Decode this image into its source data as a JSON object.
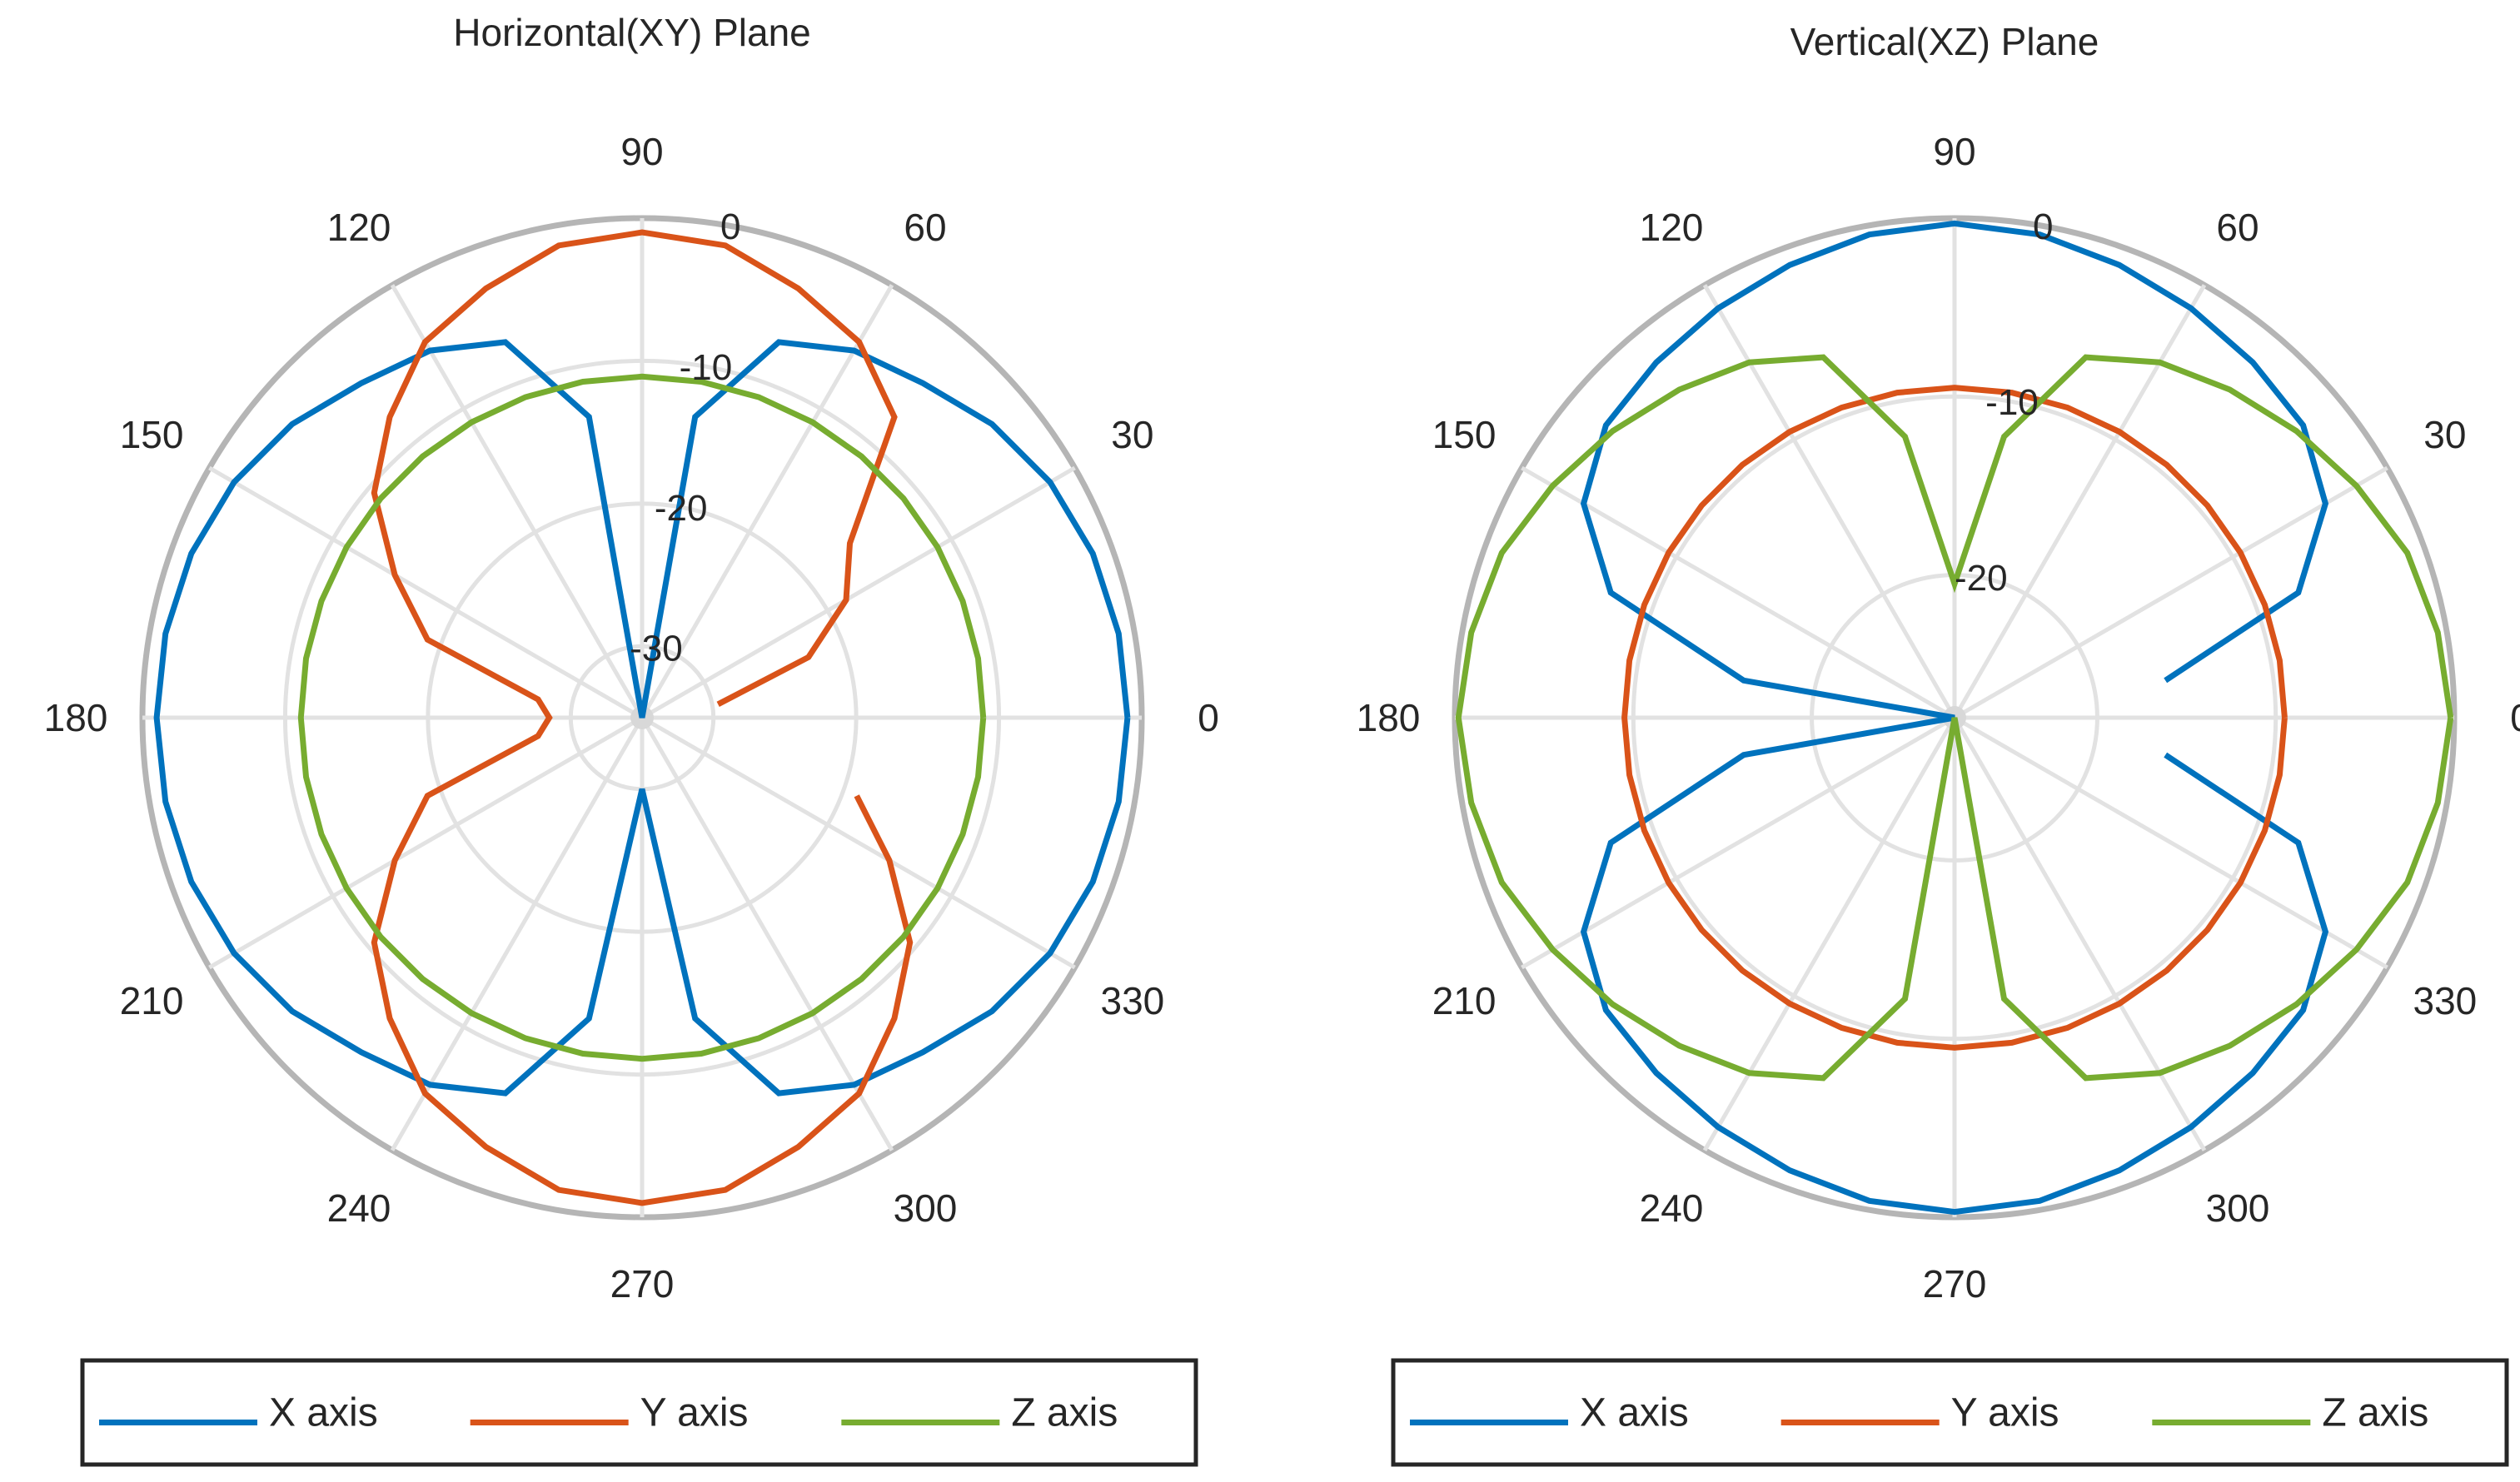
{
  "chart_data": [
    {
      "type": "polar-line",
      "title": "Horizontal(XY) Plane",
      "theta_unit": "degrees",
      "theta_ticks": [
        0,
        30,
        60,
        90,
        120,
        150,
        180,
        210,
        240,
        270,
        300,
        330
      ],
      "theta_tick_labels": [
        "0",
        "30",
        "60",
        "90",
        "120",
        "150",
        "180",
        "210",
        "240",
        "270",
        "300",
        "330"
      ],
      "r_ticks": [
        -30,
        -20,
        -10,
        0
      ],
      "r_tick_labels": [
        "-30",
        "-20",
        "-10",
        "0"
      ],
      "r_lim": [
        -35,
        0
      ],
      "r_label_angle": 80,
      "legend_position": "bottom",
      "theta": [
        0,
        10,
        20,
        30,
        40,
        50,
        60,
        70,
        80,
        90,
        100,
        110,
        120,
        130,
        140,
        150,
        160,
        170,
        180,
        190,
        200,
        210,
        220,
        230,
        240,
        250,
        260,
        270,
        280,
        290,
        300,
        310,
        320,
        330,
        340,
        350,
        360
      ],
      "series": [
        {
          "name": "X axis",
          "color": "#0072BD",
          "r": [
            -1.0,
            -1.1,
            -1.4,
            -2.0,
            -3.0,
            -4.4,
            -5.3,
            -7.0,
            -13.6,
            -35.0,
            -13.6,
            -7.0,
            -5.3,
            -4.4,
            -3.0,
            -2.0,
            -1.4,
            -1.1,
            -1.0,
            -1.1,
            -1.4,
            -2.0,
            -3.0,
            -4.4,
            -5.3,
            -7.0,
            -13.6,
            -30.0,
            -13.6,
            -7.0,
            -5.3,
            -4.4,
            -3.0,
            -2.0,
            -1.4,
            -1.1,
            -1.0
          ]
        },
        {
          "name": "Y axis",
          "color": "#D95319",
          "r": [
            null,
            -29.6,
            -22.6,
            -18.5,
            -16.0,
            -7.5,
            -4.6,
            -3.0,
            -1.4,
            -1.0,
            -1.4,
            -3.0,
            -4.6,
            -7.5,
            -10.5,
            -15.0,
            -19.0,
            -27.6,
            -28.5,
            -27.6,
            -19.0,
            -15.0,
            -10.5,
            -7.5,
            -4.6,
            -3.0,
            -1.4,
            -1.0,
            -1.4,
            -3.0,
            -4.6,
            -7.5,
            -10.5,
            -15.0,
            -19.0,
            null,
            null
          ]
        },
        {
          "name": "Z axis",
          "color": "#77AC30",
          "r": [
            -11.1,
            -11.1,
            -11.1,
            -11.1,
            -11.1,
            -11.1,
            -11.1,
            -11.1,
            -11.1,
            -11.1,
            -11.1,
            -11.1,
            -11.1,
            -11.1,
            -11.1,
            -11.1,
            -11.1,
            -11.1,
            -11.1,
            -11.1,
            -11.1,
            -11.1,
            -11.1,
            -11.1,
            -11.1,
            -11.1,
            -11.1,
            -11.1,
            -11.1,
            -11.1,
            -11.1,
            -11.1,
            -11.1,
            -11.1,
            -11.1,
            -11.1,
            -11.1
          ]
        }
      ]
    },
    {
      "type": "polar-line",
      "title": "Vertical(XZ) Plane",
      "theta_unit": "degrees",
      "theta_ticks": [
        0,
        30,
        60,
        90,
        120,
        150,
        180,
        210,
        240,
        270,
        300,
        330
      ],
      "theta_tick_labels": [
        "0",
        "30",
        "60",
        "90",
        "120",
        "150",
        "180",
        "210",
        "240",
        "270",
        "300",
        "330"
      ],
      "r_ticks": [
        -20,
        -10,
        0
      ],
      "r_tick_labels": [
        "-20",
        "-10",
        "0"
      ],
      "r_lim": [
        -28,
        0
      ],
      "r_label_angle": 80,
      "legend_position": "bottom",
      "theta": [
        0,
        10,
        20,
        30,
        40,
        50,
        60,
        70,
        80,
        90,
        100,
        110,
        120,
        130,
        140,
        150,
        160,
        170,
        180,
        190,
        200,
        210,
        220,
        230,
        240,
        250,
        260,
        270,
        280,
        290,
        300,
        310,
        320,
        330,
        340,
        350,
        360
      ],
      "series": [
        {
          "name": "X axis",
          "color": "#0072BD",
          "r": [
            null,
            -16.0,
            -7.5,
            -4.0,
            -2.5,
            -2.0,
            -1.5,
            -1.0,
            -0.5,
            -0.3,
            -0.5,
            -1.0,
            -1.5,
            -2.0,
            -2.5,
            -4.0,
            -7.5,
            -16.0,
            -28.0,
            -16.0,
            -7.5,
            -4.0,
            -2.5,
            -2.0,
            -1.5,
            -1.0,
            -0.5,
            -0.3,
            -0.5,
            -1.0,
            -1.5,
            -2.0,
            -2.5,
            -4.0,
            -7.5,
            -16.0,
            null
          ]
        },
        {
          "name": "Y axis",
          "color": "#D95319",
          "r": [
            -9.5,
            -9.5,
            -9.5,
            -9.5,
            -9.5,
            -9.5,
            -9.5,
            -9.5,
            -9.5,
            -9.5,
            -9.5,
            -9.5,
            -9.5,
            -9.5,
            -9.5,
            -9.5,
            -9.5,
            -9.5,
            -9.5,
            -9.5,
            -9.5,
            -9.5,
            -9.5,
            -9.5,
            -9.5,
            -9.5,
            -9.5,
            -9.5,
            -9.5,
            -9.5,
            -9.5,
            -9.5,
            -9.5,
            -9.5,
            -9.5,
            -9.5,
            -9.5
          ]
        },
        {
          "name": "Z axis",
          "color": "#77AC30",
          "r": [
            -0.2,
            -0.5,
            -1.0,
            -2.0,
            -3.0,
            -4.0,
            -5.0,
            -6.5,
            -12.0,
            -20.5,
            -12.0,
            -6.5,
            -5.0,
            -4.0,
            -3.0,
            -2.0,
            -1.0,
            -0.5,
            -0.2,
            -0.5,
            -1.0,
            -2.0,
            -3.0,
            -4.0,
            -5.0,
            -6.5,
            -12.0,
            -28.0,
            -12.0,
            -6.5,
            -5.0,
            -4.0,
            -3.0,
            -2.0,
            -1.0,
            -0.5,
            -0.2
          ]
        }
      ]
    }
  ]
}
